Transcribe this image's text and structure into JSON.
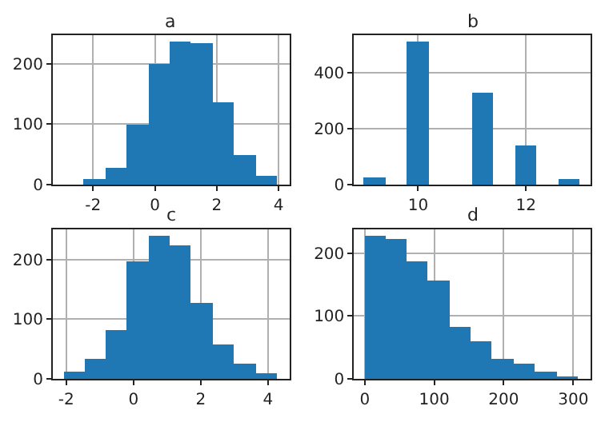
{
  "chart_data": [
    {
      "type": "histogram",
      "title": "a",
      "bins": [
        -2.3,
        -1.6,
        -0.92,
        -0.21,
        0.49,
        1.17,
        1.86,
        2.56,
        3.25,
        3.93
      ],
      "values": [
        10,
        27,
        99,
        200,
        236,
        233,
        137,
        48,
        14
      ],
      "color": "#1f77b4",
      "xlim": [
        -3.3,
        4.35
      ],
      "ylim": [
        0,
        247
      ],
      "xticks": [
        -2,
        0,
        2,
        4
      ],
      "yticks": [
        0,
        100,
        200
      ],
      "grid": true
    },
    {
      "type": "histogram",
      "title": "b",
      "bins": [
        9.0,
        9.4,
        9.8,
        10.2,
        10.6,
        11.0,
        11.4,
        11.8,
        12.2,
        12.6,
        13.0
      ],
      "values": [
        25,
        0,
        513,
        0,
        0,
        330,
        0,
        138,
        0,
        19
      ],
      "color": "#1f77b4",
      "xlim": [
        8.81,
        13.2
      ],
      "ylim": [
        0,
        536
      ],
      "xticks": [
        10,
        12
      ],
      "yticks": [
        0,
        200,
        400
      ],
      "grid": true
    },
    {
      "type": "histogram",
      "title": "c",
      "bins": [
        -2.08,
        -1.44,
        -0.83,
        -0.19,
        0.45,
        1.09,
        1.71,
        2.35,
        2.99,
        3.63,
        4.26
      ],
      "values": [
        11,
        33,
        83,
        196,
        239,
        225,
        127,
        59,
        26,
        9
      ],
      "color": "#1f77b4",
      "xlim": [
        -2.4,
        4.64
      ],
      "ylim": [
        0,
        251
      ],
      "xticks": [
        -2,
        0,
        2,
        4
      ],
      "yticks": [
        0,
        100,
        200
      ],
      "grid": true
    },
    {
      "type": "histogram",
      "title": "d",
      "bins": [
        0,
        30.9,
        60.3,
        91.3,
        122.2,
        153.1,
        183.3,
        214.2,
        245.2,
        276.1,
        306.3
      ],
      "values": [
        227,
        224,
        187,
        157,
        84,
        61,
        33,
        23,
        11,
        3
      ],
      "color": "#1f77b4",
      "xlim": [
        -15.5,
        325
      ],
      "ylim": [
        0,
        238
      ],
      "xticks": [
        0,
        100,
        200,
        300
      ],
      "yticks": [
        0,
        100,
        200
      ],
      "grid": true
    }
  ]
}
